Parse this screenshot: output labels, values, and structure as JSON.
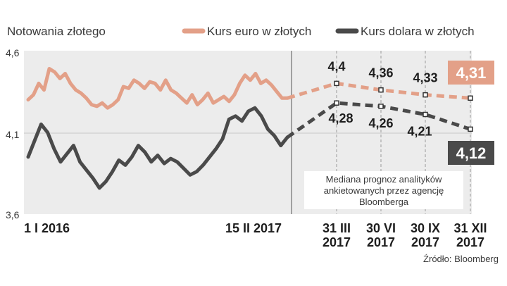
{
  "chart_data": {
    "type": "line",
    "title": "Notowania złotego",
    "legend_position": "top-right",
    "ylim": [
      3.6,
      4.6
    ],
    "y_ticks": [
      "4,6",
      "4,1",
      "3,6"
    ],
    "x_tick_labels": [
      {
        "l1": "1 I 2016",
        "l2": ""
      },
      {
        "l1": "15 II 2017",
        "l2": ""
      },
      {
        "l1": "31 III",
        "l2": "2017"
      },
      {
        "l1": "30 VI",
        "l2": "2017"
      },
      {
        "l1": "30 IX",
        "l2": "2017"
      },
      {
        "l1": "31 XII",
        "l2": "2017"
      }
    ],
    "forecast_labels": [
      "31 III 2017",
      "30 VI 2017",
      "30 IX 2017",
      "31 XII 2017"
    ],
    "series": [
      {
        "name": "Kurs euro w złotych",
        "color": "#e3a088",
        "history": [
          4.3,
          4.33,
          4.4,
          4.36,
          4.49,
          4.47,
          4.43,
          4.46,
          4.4,
          4.36,
          4.34,
          4.31,
          4.27,
          4.26,
          4.28,
          4.25,
          4.27,
          4.3,
          4.38,
          4.37,
          4.42,
          4.4,
          4.37,
          4.41,
          4.4,
          4.36,
          4.42,
          4.36,
          4.34,
          4.31,
          4.28,
          4.33,
          4.27,
          4.3,
          4.34,
          4.28,
          4.3,
          4.32,
          4.29,
          4.33,
          4.4,
          4.45,
          4.42,
          4.46,
          4.4,
          4.42,
          4.39,
          4.35,
          4.31,
          4.31
        ],
        "forecast": [
          4.4,
          4.36,
          4.33,
          4.31
        ],
        "forecast_text": [
          "4,4",
          "4,36",
          "4,33"
        ],
        "badge": "4,31"
      },
      {
        "name": "Kurs dolara w złotych",
        "color": "#4a4a4a",
        "history": [
          3.95,
          4.05,
          4.15,
          4.1,
          4.0,
          3.92,
          3.97,
          4.02,
          3.92,
          3.87,
          3.82,
          3.76,
          3.8,
          3.86,
          3.93,
          3.9,
          3.95,
          4.02,
          3.98,
          3.92,
          3.96,
          3.91,
          3.94,
          3.92,
          3.88,
          3.84,
          3.86,
          3.9,
          3.95,
          4.0,
          4.06,
          4.18,
          4.2,
          4.17,
          4.23,
          4.25,
          4.2,
          4.12,
          4.08,
          4.02,
          4.07
        ],
        "forecast": [
          4.28,
          4.26,
          4.21,
          4.12
        ],
        "forecast_text": [
          "4,28",
          "4,26",
          "4,21"
        ],
        "badge": "4,12"
      }
    ],
    "note": [
      "Mediana prognoz analityków",
      "ankietowanych przez agencję",
      "Bloomberga"
    ],
    "source": "Źródło: Bloomberg"
  }
}
